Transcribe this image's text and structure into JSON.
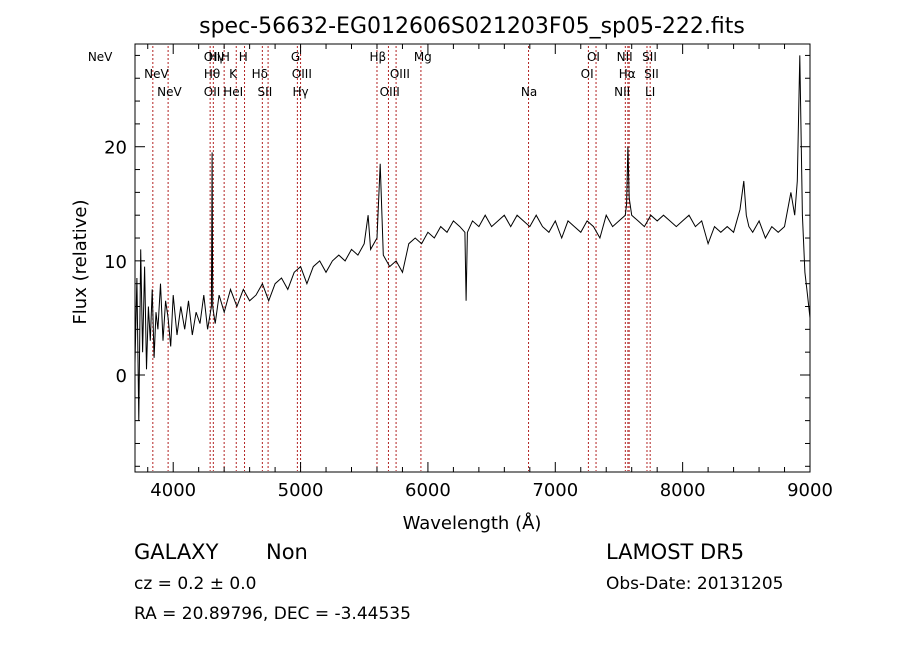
{
  "chart_data": {
    "type": "line",
    "title": "spec-56632-EG012606S021203F05_sp05-222.fits",
    "xlabel": "Wavelength (Å)",
    "ylabel": "Flux (relative)",
    "xlim": [
      3700,
      9000
    ],
    "ylim": [
      -8.5,
      29
    ],
    "x_ticks": [
      4000,
      5000,
      6000,
      7000,
      8000,
      9000
    ],
    "y_ticks": [
      0,
      10,
      20
    ],
    "grid": false,
    "line_color": "#000000",
    "marker_color": "#b22222",
    "series": [
      {
        "x": [
          3700,
          3715,
          3730,
          3745,
          3760,
          3775,
          3790,
          3805,
          3820,
          3835,
          3850,
          3865,
          3880,
          3900,
          3920,
          3940,
          3960,
          3980,
          4000,
          4030,
          4060,
          4090,
          4120,
          4150,
          4180,
          4210,
          4240,
          4270,
          4300,
          4305,
          4310,
          4330,
          4360,
          4400,
          4450,
          4500,
          4550,
          4600,
          4650,
          4700,
          4750,
          4800,
          4850,
          4900,
          4950,
          5000,
          5050,
          5100,
          5150,
          5200,
          5250,
          5300,
          5350,
          5400,
          5450,
          5500,
          5530,
          5550,
          5600,
          5625,
          5650,
          5700,
          5750,
          5800,
          5850,
          5900,
          5950,
          6000,
          6050,
          6100,
          6150,
          6200,
          6250,
          6290,
          6300,
          6310,
          6350,
          6400,
          6450,
          6500,
          6550,
          6600,
          6650,
          6700,
          6750,
          6800,
          6850,
          6900,
          6950,
          7000,
          7050,
          7100,
          7150,
          7200,
          7250,
          7300,
          7350,
          7400,
          7450,
          7500,
          7550,
          7560,
          7570,
          7580,
          7600,
          7650,
          7700,
          7750,
          7800,
          7850,
          7900,
          7950,
          8000,
          8050,
          8100,
          8150,
          8200,
          8250,
          8300,
          8350,
          8400,
          8450,
          8480,
          8500,
          8520,
          8550,
          8600,
          8650,
          8700,
          8750,
          8800,
          8850,
          8880,
          8900,
          8920,
          8940,
          8960,
          8980,
          9000
        ],
        "values": [
          1.0,
          8.5,
          -4.0,
          11.0,
          2.0,
          9.5,
          0.5,
          6.0,
          3.0,
          7.5,
          1.5,
          5.5,
          4.0,
          8.0,
          3.0,
          6.5,
          5.0,
          2.5,
          7.0,
          3.5,
          6.0,
          4.0,
          6.5,
          3.5,
          5.5,
          4.5,
          7.0,
          4.0,
          6.0,
          19.5,
          6.0,
          4.5,
          7.0,
          5.5,
          7.5,
          6.0,
          7.5,
          6.5,
          7.0,
          8.0,
          6.5,
          8.0,
          8.5,
          7.5,
          9.0,
          9.5,
          8.0,
          9.5,
          10.0,
          9.0,
          10.0,
          10.5,
          10.0,
          11.0,
          10.5,
          11.5,
          14.0,
          11.0,
          12.0,
          18.5,
          10.5,
          9.5,
          10.0,
          9.0,
          11.5,
          12.0,
          11.5,
          12.5,
          12.0,
          13.0,
          12.5,
          13.5,
          13.0,
          12.5,
          6.5,
          12.5,
          13.5,
          13.0,
          14.0,
          13.0,
          13.5,
          14.0,
          13.0,
          14.0,
          13.5,
          13.0,
          14.0,
          13.0,
          12.5,
          13.5,
          12.0,
          13.5,
          13.0,
          12.5,
          13.5,
          13.0,
          12.0,
          14.0,
          13.0,
          13.5,
          14.0,
          15.0,
          20.0,
          15.5,
          14.0,
          13.5,
          13.0,
          14.0,
          13.5,
          14.0,
          13.5,
          13.0,
          13.5,
          14.0,
          13.0,
          13.5,
          11.5,
          13.0,
          12.5,
          13.0,
          12.5,
          14.5,
          17.0,
          14.0,
          13.0,
          12.5,
          13.5,
          12.0,
          13.0,
          12.5,
          13.0,
          16.0,
          14.0,
          17.0,
          28.0,
          14.0,
          9.0,
          7.0,
          5.0
        ]
      }
    ],
    "lines": [
      {
        "x": 3426,
        "label": "NeV",
        "row": 1
      },
      {
        "x": 3868,
        "label": "NeV",
        "row": 2
      },
      {
        "x": 3970,
        "label": "NeV",
        "row": 3
      },
      {
        "x": 4305,
        "label": "OII",
        "row": 1
      },
      {
        "x": 4340,
        "label": "Hγ",
        "row": 1
      },
      {
        "x": 4305,
        "label": "Hθ",
        "row": 2
      },
      {
        "x": 4305,
        "label": "OII",
        "row": 3
      },
      {
        "x": 4410,
        "label": "H",
        "row": 1
      },
      {
        "x": 4470,
        "label": "K",
        "row": 2
      },
      {
        "x": 4471,
        "label": "HeI",
        "row": 3
      },
      {
        "x": 4550,
        "label": "H",
        "row": 1
      },
      {
        "x": 4680,
        "label": "Hδ",
        "row": 2
      },
      {
        "x": 4720,
        "label": "SII",
        "row": 3
      },
      {
        "x": 4960,
        "label": "G",
        "row": 1
      },
      {
        "x": 5010,
        "label": "OIII",
        "row": 2
      },
      {
        "x": 5000,
        "label": "Hγ",
        "row": 3
      },
      {
        "x": 5607,
        "label": "Hβ",
        "row": 1
      },
      {
        "x": 5780,
        "label": "OIII",
        "row": 2
      },
      {
        "x": 5700,
        "label": "OIII",
        "row": 3
      },
      {
        "x": 5960,
        "label": "Mg",
        "row": 1
      },
      {
        "x": 6794,
        "label": "Na",
        "row": 3
      },
      {
        "x": 7300,
        "label": "OI",
        "row": 1
      },
      {
        "x": 7250,
        "label": "OI",
        "row": 2
      },
      {
        "x": 7545,
        "label": "NII",
        "row": 1
      },
      {
        "x": 7565,
        "label": "Hα",
        "row": 2
      },
      {
        "x": 7525,
        "label": "NII",
        "row": 3
      },
      {
        "x": 7740,
        "label": "SII",
        "row": 1
      },
      {
        "x": 7755,
        "label": "SII",
        "row": 2
      },
      {
        "x": 7745,
        "label": "LI",
        "row": 3
      }
    ],
    "marker_positions": [
      3840,
      3960,
      4290,
      4315,
      4400,
      4495,
      4560,
      4700,
      4745,
      4975,
      5000,
      5600,
      5690,
      5750,
      5945,
      6790,
      7260,
      7320,
      7550,
      7570,
      7580,
      7720,
      7745
    ]
  },
  "footer": {
    "object_class": "GALAXY",
    "subclass": "Non",
    "survey": "LAMOST DR5",
    "cz_text": "cz = 0.2 ± 0.0",
    "obs_date": "Obs-Date: 20131205",
    "coords": "RA =  20.89796, DEC =  -3.44535"
  }
}
